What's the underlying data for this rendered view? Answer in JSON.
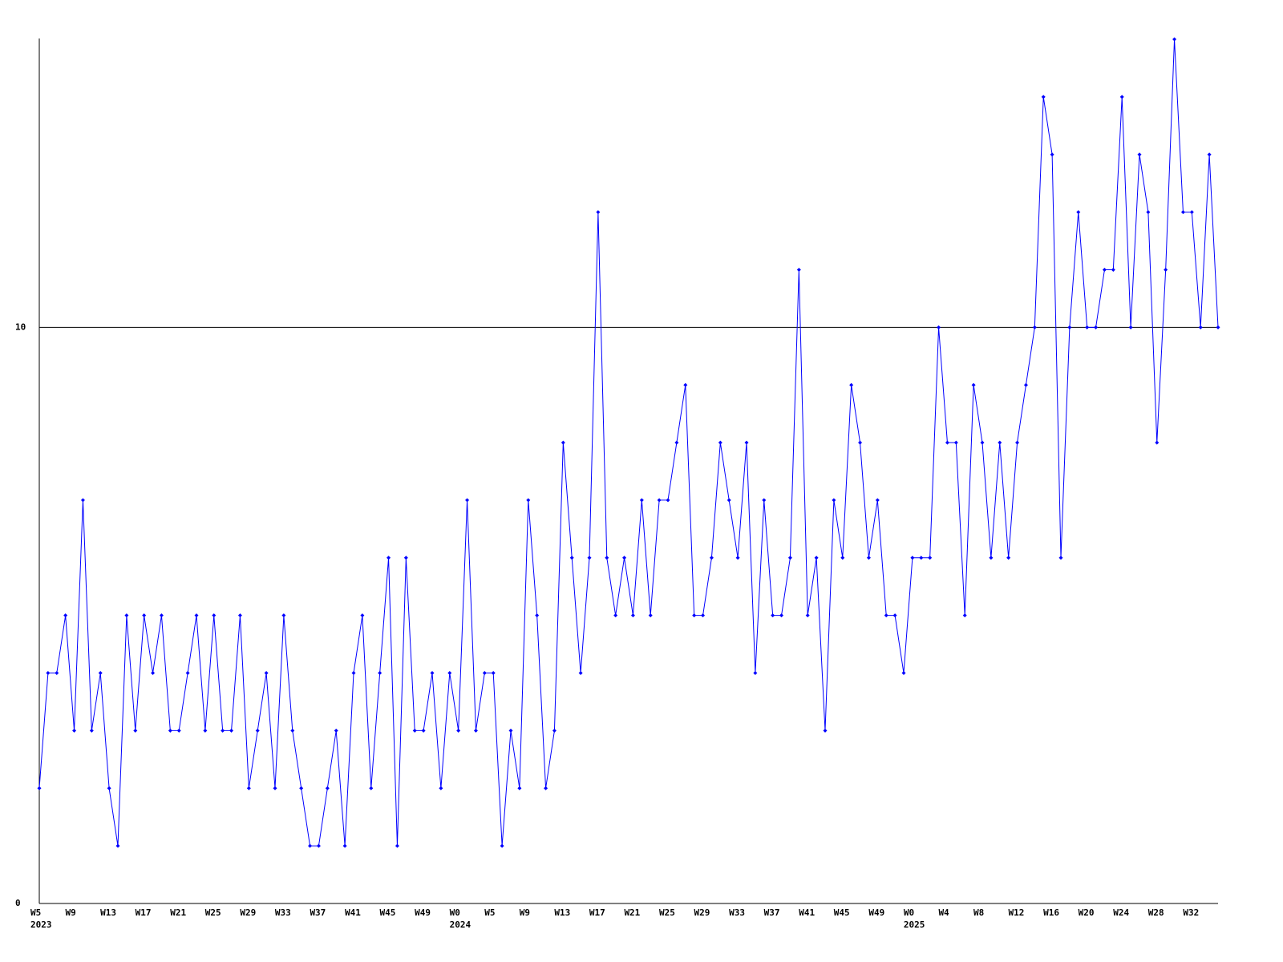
{
  "chart_data": {
    "type": "line",
    "categories": [
      "W5",
      null,
      null,
      null,
      "W9",
      null,
      null,
      null,
      "W13",
      null,
      null,
      null,
      "W17",
      null,
      null,
      null,
      "W21",
      null,
      null,
      null,
      "W25",
      null,
      null,
      null,
      "W29",
      null,
      null,
      null,
      "W33",
      null,
      null,
      null,
      "W37",
      null,
      null,
      null,
      "W41",
      null,
      null,
      null,
      "W45",
      null,
      null,
      null,
      "W49",
      null,
      null,
      null,
      "W0",
      null,
      null,
      null,
      "W5",
      null,
      null,
      null,
      "W9",
      null,
      null,
      null,
      "W13",
      null,
      null,
      null,
      "W17",
      null,
      null,
      null,
      "W21",
      null,
      null,
      null,
      "W25",
      null,
      null,
      null,
      "W29",
      null,
      null,
      null,
      "W33",
      null,
      null,
      null,
      "W37",
      null,
      null,
      null,
      "W41",
      null,
      null,
      null,
      "W45",
      null,
      null,
      null,
      "W49",
      null,
      null,
      null,
      "W0",
      null,
      null,
      null,
      "W4",
      null,
      null,
      null,
      "W8",
      null,
      null,
      null,
      "W12",
      null,
      null,
      null,
      "W16",
      null,
      null,
      null,
      "W20",
      null,
      null,
      null,
      "W24",
      null,
      null,
      null,
      "W28",
      null,
      null,
      null,
      "W32",
      null,
      null,
      null
    ],
    "category_years": [
      "2023",
      null,
      null,
      null,
      null,
      null,
      null,
      null,
      null,
      null,
      null,
      null,
      null,
      null,
      null,
      null,
      null,
      null,
      null,
      null,
      null,
      null,
      null,
      null,
      null,
      null,
      null,
      null,
      null,
      null,
      null,
      null,
      null,
      null,
      null,
      null,
      null,
      null,
      null,
      null,
      null,
      null,
      null,
      null,
      null,
      null,
      null,
      null,
      "2024",
      null,
      null,
      null,
      null,
      null,
      null,
      null,
      null,
      null,
      null,
      null,
      null,
      null,
      null,
      null,
      null,
      null,
      null,
      null,
      null,
      null,
      null,
      null,
      null,
      null,
      null,
      null,
      null,
      null,
      null,
      null,
      null,
      null,
      null,
      null,
      null,
      null,
      null,
      null,
      null,
      null,
      null,
      null,
      null,
      null,
      null,
      null,
      null,
      null,
      null,
      null,
      "2025",
      null,
      null,
      null,
      null,
      null,
      null,
      null,
      null,
      null,
      null,
      null,
      null,
      null,
      null,
      null,
      null,
      null,
      null,
      null,
      null,
      null,
      null,
      null,
      null,
      null,
      null,
      null,
      null,
      null,
      null,
      null,
      null,
      null,
      null,
      null
    ],
    "series": [
      {
        "color": "#0000ff",
        "values": [
          2,
          4,
          4,
          5,
          3,
          7,
          3,
          4,
          2,
          1,
          5,
          3,
          5,
          4,
          5,
          3,
          3,
          4,
          5,
          3,
          5,
          3,
          3,
          5,
          2,
          3,
          4,
          2,
          5,
          3,
          2,
          1,
          1,
          2,
          3,
          1,
          4,
          5,
          2,
          4,
          6,
          1,
          6,
          3,
          3,
          4,
          2,
          4,
          3,
          7,
          3,
          4,
          4,
          1,
          3,
          2,
          7,
          5,
          2,
          3,
          8,
          6,
          4,
          6,
          12,
          6,
          5,
          6,
          5,
          7,
          5,
          7,
          7,
          8,
          9,
          5,
          5,
          6,
          8,
          7,
          6,
          8,
          4,
          7,
          5,
          5,
          6,
          11,
          5,
          6,
          3,
          7,
          6,
          9,
          8,
          6,
          7,
          5,
          5,
          4,
          6,
          6,
          6,
          10,
          8,
          8,
          5,
          9,
          8,
          6,
          8,
          6,
          8,
          9,
          10,
          14,
          13,
          6,
          10,
          12,
          10,
          10,
          11,
          11,
          14,
          10,
          13,
          12,
          8,
          11,
          15,
          12,
          12,
          10,
          13,
          10
        ]
      }
    ],
    "ylim": [
      0,
      15
    ],
    "yticks": [
      0,
      10
    ],
    "grid": true,
    "axis_color": "#000000"
  }
}
